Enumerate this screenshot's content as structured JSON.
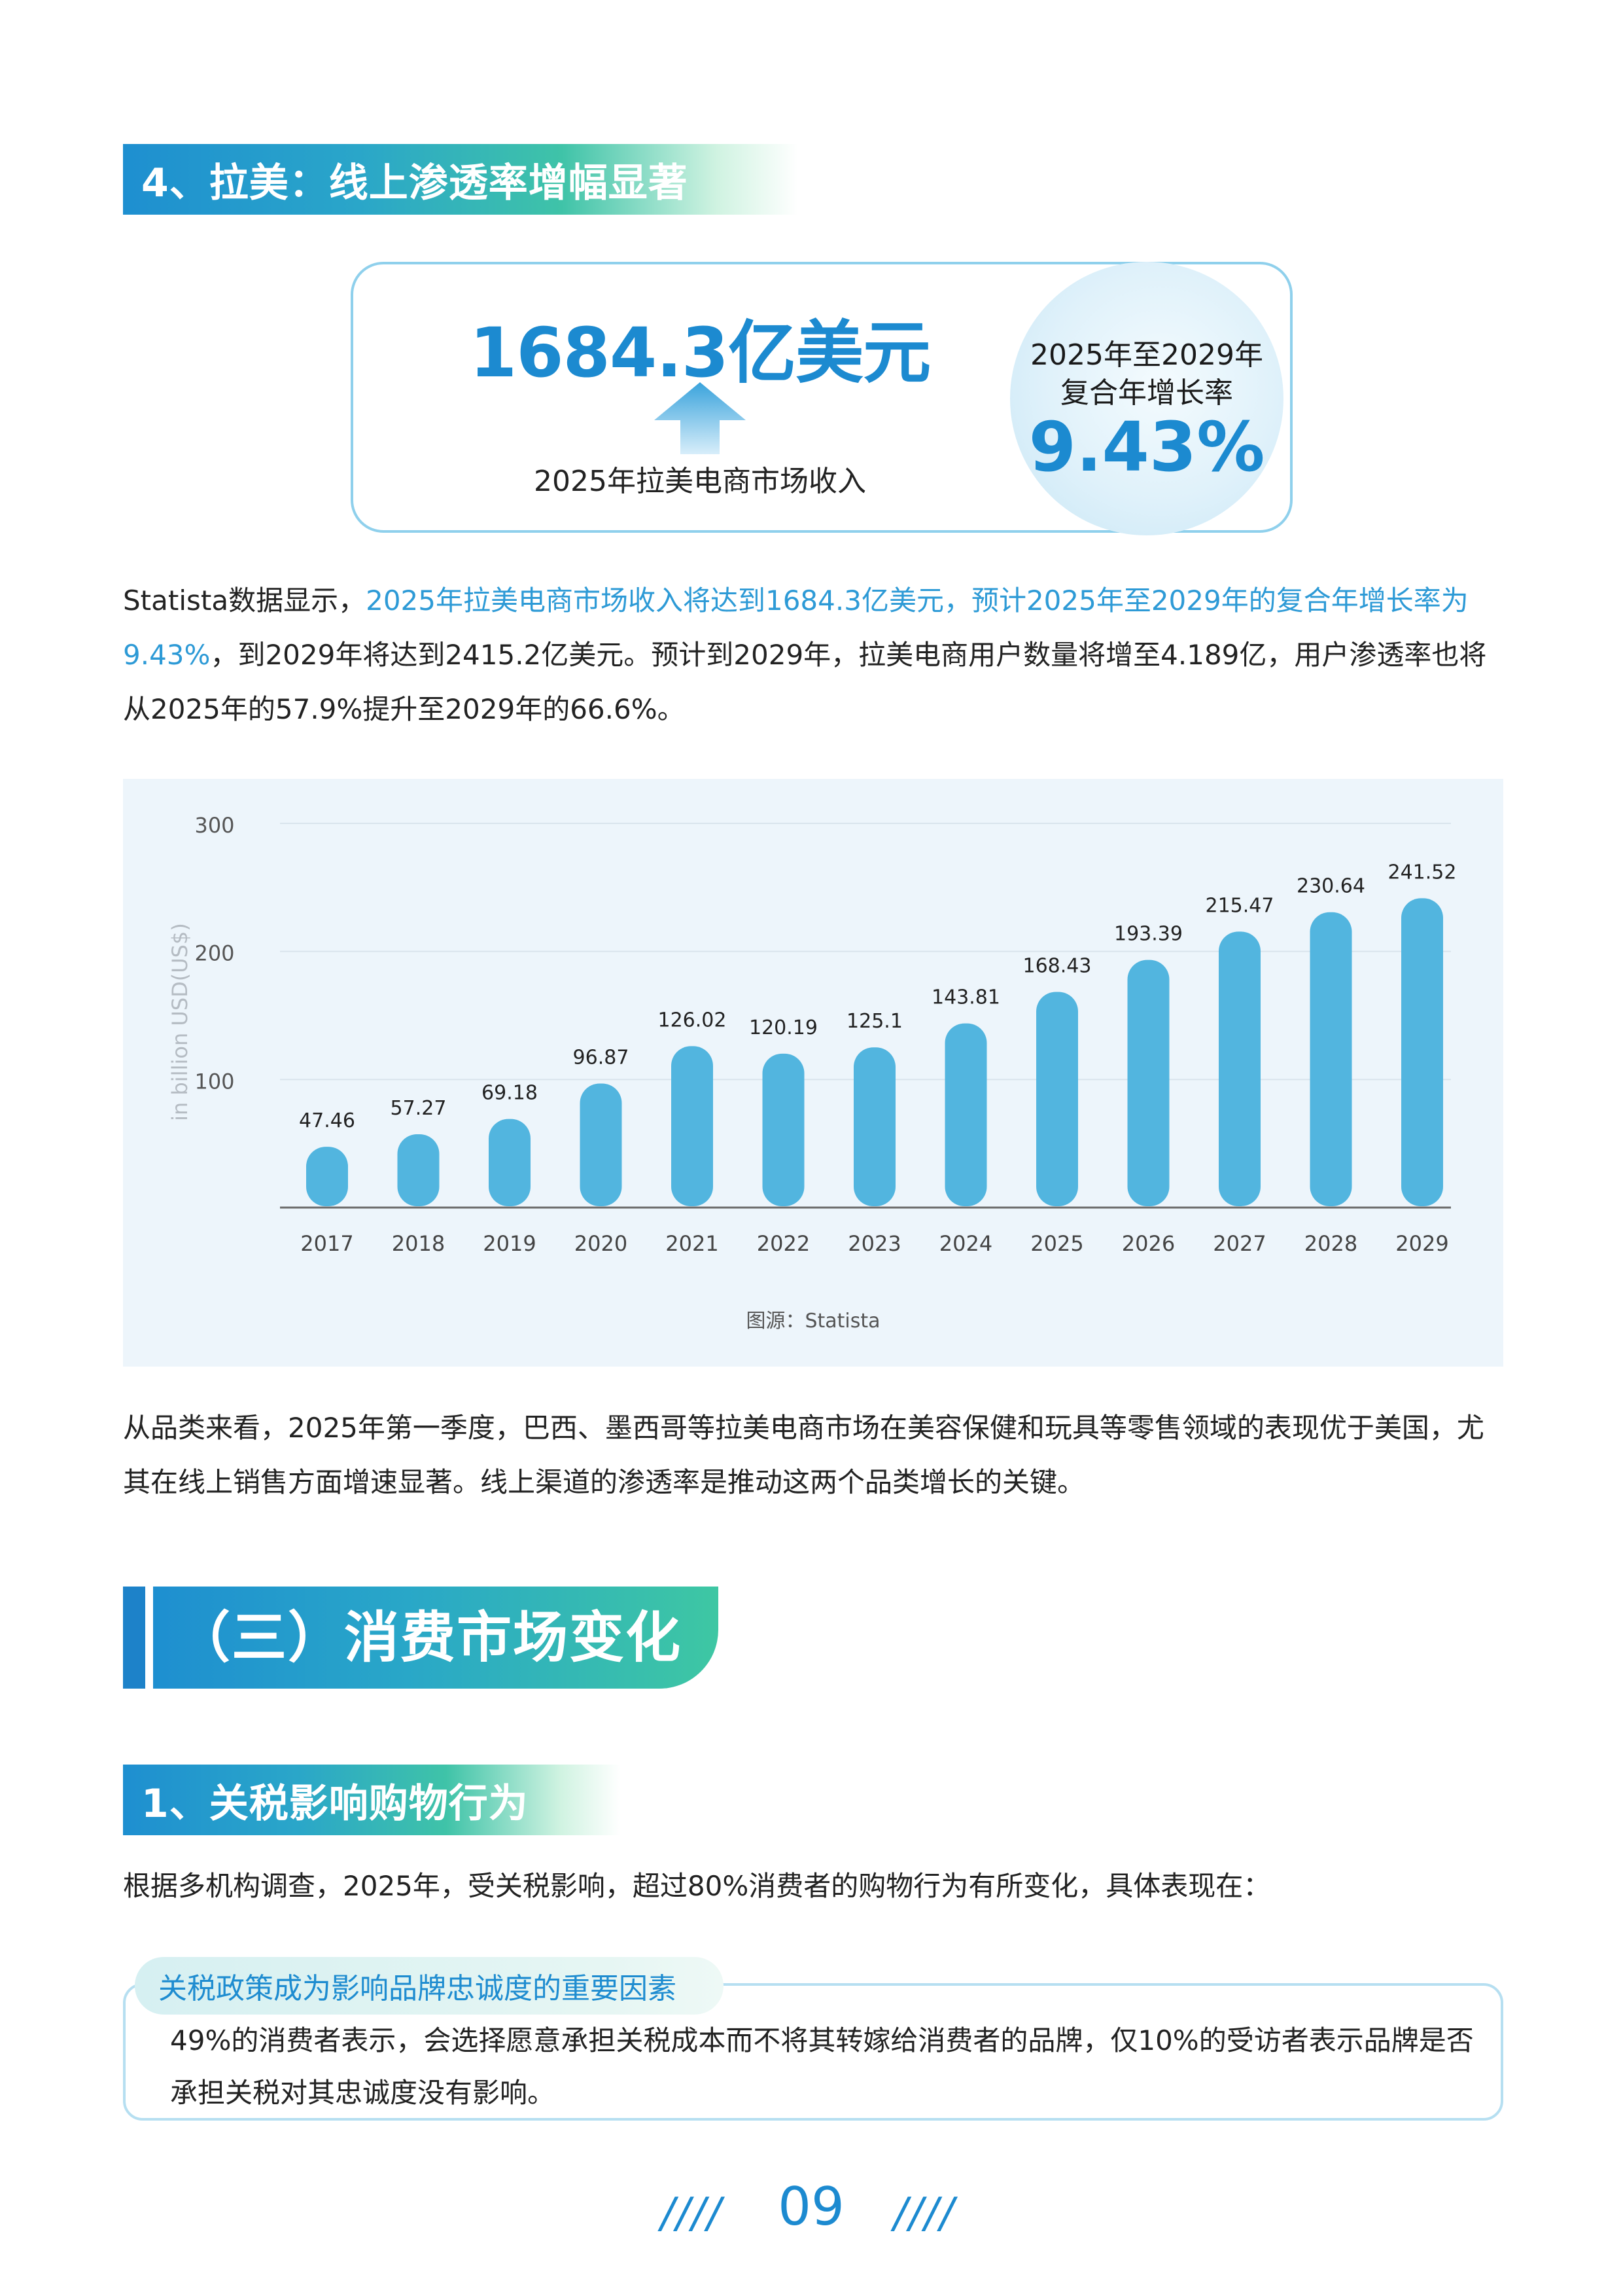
{
  "section_latam": {
    "title": "4、拉美：线上渗透率增幅显著"
  },
  "stat_card": {
    "revenue_value": "1684.3亿美元",
    "revenue_label": "2025年拉美电商市场收入",
    "cagr_line1": "2025年至2029年",
    "cagr_line2": "复合年增长率",
    "cagr_value": "9.43%"
  },
  "paragraph1": {
    "prefix": "Statista数据显示，",
    "highlight": "2025年拉美电商市场收入将达到1684.3亿美元，预计2025年至2029年的复合年增长率为9.43%",
    "suffix": "，到2029年将达到2415.2亿美元。预计到2029年，拉美电商用户数量将增至4.189亿，用户渗透率也将从2025年的57.9%提升至2029年的66.6%。"
  },
  "chart_data": {
    "type": "bar",
    "categories": [
      "2017",
      "2018",
      "2019",
      "2020",
      "2021",
      "2022",
      "2023",
      "2024",
      "2025",
      "2026",
      "2027",
      "2028",
      "2029"
    ],
    "values": [
      47.46,
      57.27,
      69.18,
      96.87,
      126.02,
      120.19,
      125.1,
      143.81,
      168.43,
      193.39,
      215.47,
      230.64,
      241.52
    ],
    "value_labels": [
      "47.46",
      "57.27",
      "69.18",
      "96.87",
      "126.02",
      "120.19",
      "125.1",
      "143.81",
      "168.43",
      "193.39",
      "215.47",
      "230.64",
      "241.52"
    ],
    "ylabel": "in billion USD(US$)",
    "yticks": [
      "100",
      "200",
      "300"
    ],
    "ylim": [
      0,
      300
    ],
    "grid": true,
    "bar_color": "#52b5df",
    "source": "图源：Statista"
  },
  "paragraph2": {
    "text": "从品类来看，2025年第一季度，巴西、墨西哥等拉美电商市场在美容保健和玩具等零售领域的表现优于美国，尤其在线上销售方面增速显著。线上渠道的渗透率是推动这两个品类增长的关键。"
  },
  "section_consumer": {
    "title": "（三）消费市场变化"
  },
  "section_tariff": {
    "title": "1、关税影响购物行为"
  },
  "paragraph3": {
    "text": "根据多机构调查，2025年，受关税影响，超过80%消费者的购物行为有所变化，具体表现在："
  },
  "tariff_box": {
    "tag": "关税政策成为影响品牌忠诚度的重要因素",
    "text": "49%的消费者表示，会选择愿意承担关税成本而不将其转嫁给消费者的品牌，仅10%的受访者表示品牌是否承担关税对其忠诚度没有影响。"
  },
  "footer": {
    "page_number": "09",
    "left_deco": "////",
    "right_deco": "////"
  },
  "colors": {
    "accent_blue": "#1c8ad0",
    "accent_green": "#3fc3a8",
    "highlight_text": "#2d9ad6"
  }
}
